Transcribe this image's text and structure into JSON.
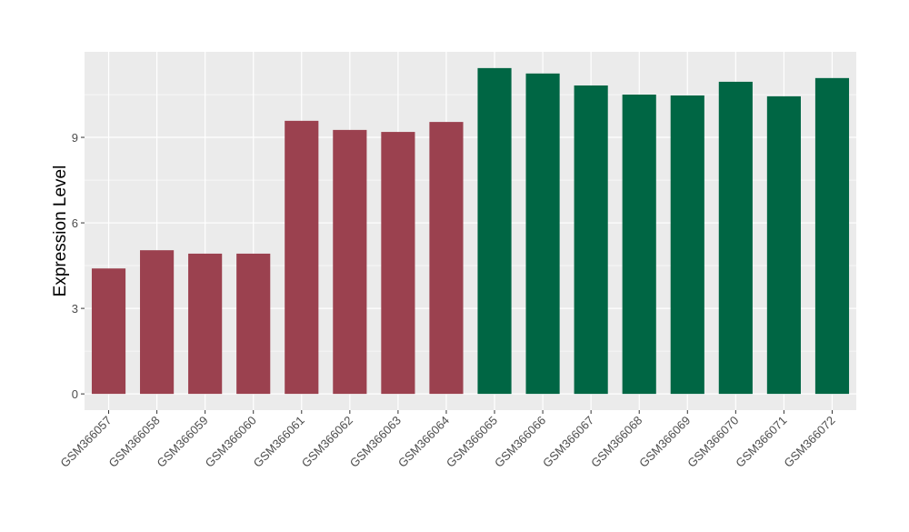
{
  "chart_data": {
    "type": "bar",
    "title": "",
    "xlabel": "",
    "ylabel": "Expression Level",
    "ylim": [
      -0.57,
      12.0
    ],
    "yticks": [
      0,
      3,
      6,
      9
    ],
    "grid": true,
    "categories": [
      "GSM366057",
      "GSM366058",
      "GSM366059",
      "GSM366060",
      "GSM366061",
      "GSM366062",
      "GSM366063",
      "GSM366064",
      "GSM366065",
      "GSM366066",
      "GSM366067",
      "GSM366068",
      "GSM366069",
      "GSM366070",
      "GSM366071",
      "GSM366072"
    ],
    "values": [
      4.4,
      5.04,
      4.92,
      4.92,
      9.58,
      9.26,
      9.19,
      9.54,
      11.43,
      11.24,
      10.82,
      10.5,
      10.47,
      10.95,
      10.44,
      11.08
    ],
    "groups": [
      0,
      0,
      0,
      0,
      0,
      0,
      0,
      0,
      1,
      1,
      1,
      1,
      1,
      1,
      1,
      1
    ],
    "colors": [
      "#9b414f",
      "#006644"
    ],
    "panel_background": "#ebebeb"
  }
}
